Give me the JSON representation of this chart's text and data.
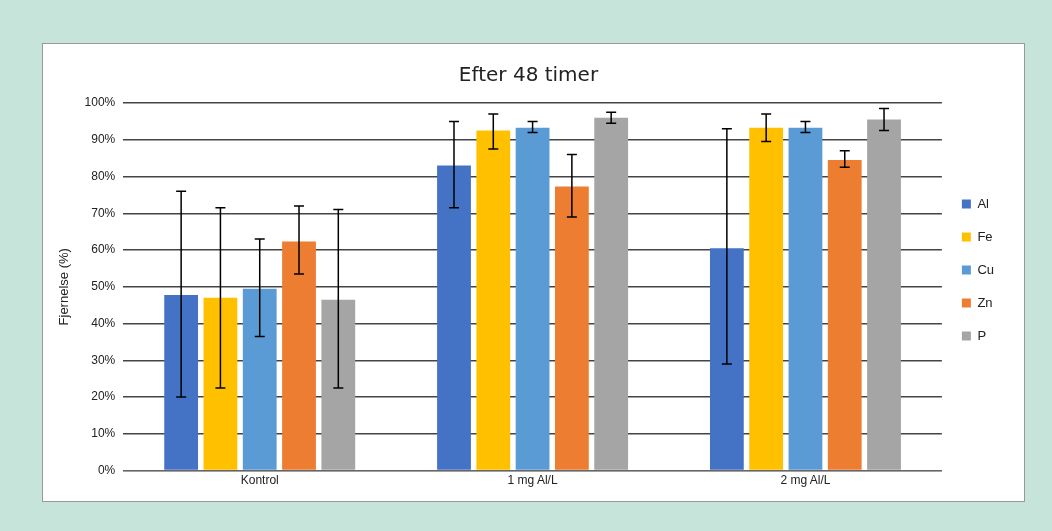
{
  "chart_data": {
    "type": "bar",
    "title": "Efter 48 timer",
    "ylabel": "Fjernelse (%)",
    "categories": [
      "Kontrol",
      "1 mg Al/L",
      "2 mg Al/L"
    ],
    "series": [
      {
        "name": "Al",
        "color": "#4472c4",
        "values": [
          47.8,
          83,
          60.5
        ],
        "errors": [
          [
            20,
            76
          ],
          [
            71.5,
            95
          ],
          [
            29,
            93
          ]
        ]
      },
      {
        "name": "Fe",
        "color": "#ffc000",
        "values": [
          47,
          92.5,
          93.3
        ],
        "errors": [
          [
            22.5,
            71.5
          ],
          [
            87.5,
            97
          ],
          [
            89.5,
            97
          ]
        ]
      },
      {
        "name": "Cu",
        "color": "#5b9bd5",
        "values": [
          49.5,
          93.3,
          93.3
        ],
        "errors": [
          [
            36.5,
            63
          ],
          [
            92,
            95
          ],
          [
            92,
            95
          ]
        ]
      },
      {
        "name": "Zn",
        "color": "#ed7d31",
        "values": [
          62.3,
          77.3,
          84.5
        ],
        "errors": [
          [
            53.5,
            72
          ],
          [
            69,
            86
          ],
          [
            82.5,
            87
          ]
        ]
      },
      {
        "name": "P",
        "color": "#a5a5a5",
        "values": [
          46.5,
          96,
          95.5
        ],
        "errors": [
          [
            22.5,
            71
          ],
          [
            94.5,
            97.5
          ],
          [
            92.5,
            98.5
          ]
        ]
      }
    ],
    "ylim": [
      0,
      100
    ],
    "yticks": [
      {
        "value": 0,
        "label": "0%"
      },
      {
        "value": 10,
        "label": "10%"
      },
      {
        "value": 20,
        "label": "20%"
      },
      {
        "value": 30,
        "label": "30%"
      },
      {
        "value": 40,
        "label": "40%"
      },
      {
        "value": 50,
        "label": "50%"
      },
      {
        "value": 60,
        "label": "60%"
      },
      {
        "value": 70,
        "label": "70%"
      },
      {
        "value": 80,
        "label": "80%"
      },
      {
        "value": 90,
        "label": "90%"
      },
      {
        "value": 100,
        "label": "100%"
      }
    ],
    "grid": "y",
    "legend": "right"
  }
}
